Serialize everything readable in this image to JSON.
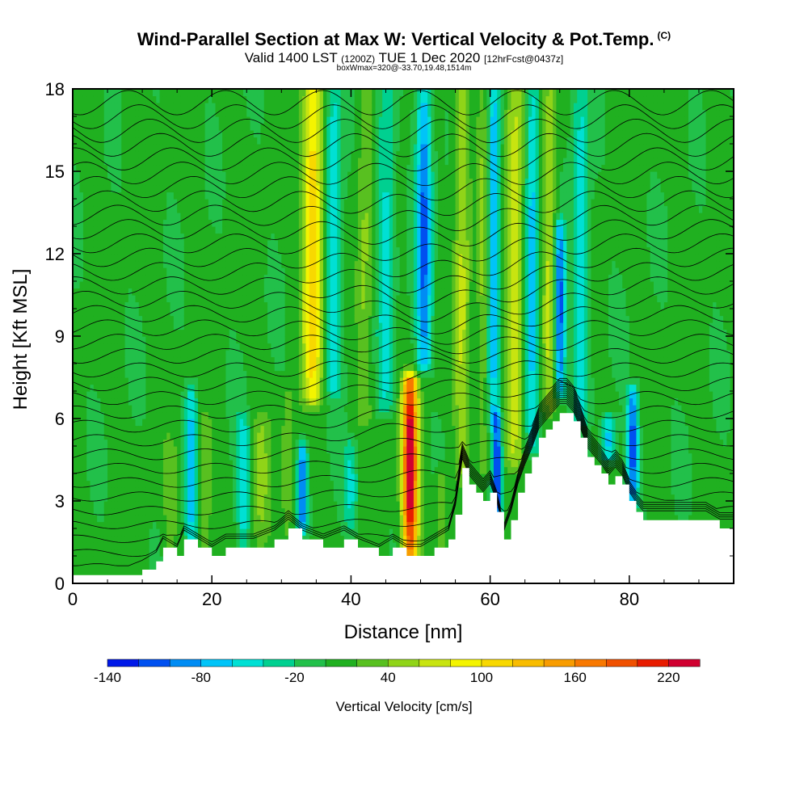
{
  "header": {
    "title": "Wind-Parallel Section at Max W: Vertical Velocity & Pot.Temp.",
    "copyright": "(C)",
    "valid_prefix": "Valid 1400 LST",
    "valid_z": "(1200Z)",
    "valid_date": "TUE 1 Dec 2020",
    "forecast": "[12hrFcst@0437z]",
    "box_info": "boxWmax=320@-33.70,19.48,1514m"
  },
  "chart_data": {
    "type": "heatmap",
    "title": "Wind-Parallel Section at Max W: Vertical Velocity & Pot.Temp.",
    "xlabel": "Distance [nm]",
    "ylabel": "Height [Kft MSL]",
    "xlim": [
      0,
      95
    ],
    "ylim": [
      0,
      18
    ],
    "x_ticks": [
      "0",
      "20",
      "40",
      "60",
      "80"
    ],
    "x_tick_values": [
      0,
      20,
      40,
      60,
      80
    ],
    "y_ticks": [
      "0",
      "3",
      "6",
      "9",
      "12",
      "15",
      "18"
    ],
    "y_tick_values": [
      0,
      3,
      6,
      9,
      12,
      15,
      18
    ],
    "colorbar": {
      "title": "Vertical Velocity [cm/s]",
      "tick_labels": [
        "-140",
        "-80",
        "-20",
        "40",
        "100",
        "160",
        "220"
      ],
      "tick_values": [
        -140,
        -80,
        -20,
        40,
        100,
        160,
        220
      ],
      "bins": [
        -140,
        -120,
        -100,
        -80,
        -60,
        -40,
        -20,
        0,
        20,
        40,
        60,
        80,
        100,
        120,
        140,
        160,
        180,
        200,
        220,
        240
      ],
      "colors": [
        "#0018e8",
        "#0050f0",
        "#008cf4",
        "#00c4f8",
        "#00e0d4",
        "#00d090",
        "#22c04a",
        "#20b020",
        "#58c020",
        "#90d418",
        "#c8e410",
        "#f4f400",
        "#f8d800",
        "#f8bc00",
        "#f89c00",
        "#f87800",
        "#f05000",
        "#e81c00",
        "#d00030"
      ]
    },
    "terrain": [
      {
        "x": 0,
        "h": 0.3
      },
      {
        "x": 4,
        "h": 0.3
      },
      {
        "x": 8,
        "h": 0.3
      },
      {
        "x": 10,
        "h": 0.5
      },
      {
        "x": 12,
        "h": 0.8
      },
      {
        "x": 13,
        "h": 1.3
      },
      {
        "x": 15,
        "h": 1.0
      },
      {
        "x": 16,
        "h": 1.6
      },
      {
        "x": 18,
        "h": 1.3
      },
      {
        "x": 20,
        "h": 1.0
      },
      {
        "x": 22,
        "h": 1.3
      },
      {
        "x": 26,
        "h": 1.3
      },
      {
        "x": 29,
        "h": 1.6
      },
      {
        "x": 31,
        "h": 2.0
      },
      {
        "x": 33,
        "h": 1.6
      },
      {
        "x": 36,
        "h": 1.3
      },
      {
        "x": 39,
        "h": 1.6
      },
      {
        "x": 41,
        "h": 1.3
      },
      {
        "x": 44,
        "h": 1.0
      },
      {
        "x": 46,
        "h": 1.3
      },
      {
        "x": 48,
        "h": 1.0
      },
      {
        "x": 50,
        "h": 1.0
      },
      {
        "x": 52,
        "h": 1.3
      },
      {
        "x": 54,
        "h": 1.6
      },
      {
        "x": 55,
        "h": 2.5
      },
      {
        "x": 56,
        "h": 4.2
      },
      {
        "x": 57,
        "h": 3.6
      },
      {
        "x": 58,
        "h": 3.3
      },
      {
        "x": 59,
        "h": 3.0
      },
      {
        "x": 60,
        "h": 3.3
      },
      {
        "x": 61,
        "h": 2.6
      },
      {
        "x": 62,
        "h": 1.6
      },
      {
        "x": 63,
        "h": 2.3
      },
      {
        "x": 64,
        "h": 3.3
      },
      {
        "x": 65,
        "h": 4.0
      },
      {
        "x": 66,
        "h": 4.6
      },
      {
        "x": 67,
        "h": 5.3
      },
      {
        "x": 68,
        "h": 5.6
      },
      {
        "x": 69,
        "h": 5.9
      },
      {
        "x": 70,
        "h": 6.2
      },
      {
        "x": 71,
        "h": 6.2
      },
      {
        "x": 72,
        "h": 5.9
      },
      {
        "x": 73,
        "h": 5.3
      },
      {
        "x": 74,
        "h": 4.6
      },
      {
        "x": 75,
        "h": 4.3
      },
      {
        "x": 76,
        "h": 4.0
      },
      {
        "x": 77,
        "h": 3.6
      },
      {
        "x": 78,
        "h": 3.9
      },
      {
        "x": 79,
        "h": 3.6
      },
      {
        "x": 80,
        "h": 3.0
      },
      {
        "x": 81,
        "h": 2.6
      },
      {
        "x": 82,
        "h": 2.3
      },
      {
        "x": 85,
        "h": 2.3
      },
      {
        "x": 88,
        "h": 2.3
      },
      {
        "x": 91,
        "h": 2.3
      },
      {
        "x": 93,
        "h": 2.0
      },
      {
        "x": 95,
        "h": 2.0
      }
    ],
    "updrafts": [
      {
        "x": 34.5,
        "h0": 6.8,
        "h1": 18,
        "w": 120,
        "sx": 1.4
      },
      {
        "x": 48.5,
        "h0": 1.0,
        "h1": 7.4,
        "w": 240,
        "sx": 1.1
      },
      {
        "x": 56,
        "h0": 4,
        "h1": 18,
        "w": 60,
        "sx": 1.1
      },
      {
        "x": 63.5,
        "h0": 4.5,
        "h1": 18,
        "w": 70,
        "sx": 1.3
      },
      {
        "x": 68.5,
        "h0": 6.5,
        "h1": 18,
        "w": 60,
        "sx": 1.0
      },
      {
        "x": 42,
        "h0": 6,
        "h1": 18,
        "w": 40,
        "sx": 1.1
      },
      {
        "x": 27,
        "h0": 1.5,
        "h1": 6,
        "w": 40,
        "sx": 1.2
      },
      {
        "x": 31,
        "h0": 1.8,
        "h1": 7,
        "w": 30,
        "sx": 1.0
      },
      {
        "x": 19,
        "h0": 1.3,
        "h1": 6,
        "w": 40,
        "sx": 0.9
      },
      {
        "x": 14,
        "h0": 1.0,
        "h1": 5,
        "w": 30,
        "sx": 0.9
      },
      {
        "x": 53,
        "h0": 1.3,
        "h1": 4,
        "w": 40,
        "sx": 0.9
      },
      {
        "x": 59,
        "h0": 4.2,
        "h1": 18,
        "w": 40,
        "sx": 0.8
      }
    ],
    "downdrafts": [
      {
        "x": 37.5,
        "h0": 7,
        "h1": 18,
        "w": -70,
        "sx": 1.2
      },
      {
        "x": 50.5,
        "h0": 8,
        "h1": 18,
        "w": -110,
        "sx": 1.1
      },
      {
        "x": 45,
        "h0": 6.5,
        "h1": 18,
        "w": -60,
        "sx": 1.2
      },
      {
        "x": 61,
        "h0": 2,
        "h1": 6,
        "w": -140,
        "sx": 0.7
      },
      {
        "x": 60.5,
        "h0": 6,
        "h1": 18,
        "w": -90,
        "sx": 0.9
      },
      {
        "x": 66,
        "h0": 5,
        "h1": 18,
        "w": -80,
        "sx": 1.0
      },
      {
        "x": 70,
        "h0": 7,
        "h1": 13,
        "w": -120,
        "sx": 0.8
      },
      {
        "x": 80.5,
        "h0": 3,
        "h1": 7,
        "w": -120,
        "sx": 0.8
      },
      {
        "x": 33,
        "h0": 2,
        "h1": 5,
        "w": -110,
        "sx": 0.7
      },
      {
        "x": 24.5,
        "h0": 1.5,
        "h1": 6,
        "w": -60,
        "sx": 1.0
      },
      {
        "x": 17,
        "h0": 1.5,
        "h1": 7,
        "w": -80,
        "sx": 0.8
      },
      {
        "x": 73,
        "h0": 6,
        "h1": 18,
        "w": -60,
        "sx": 1.2
      },
      {
        "x": 77,
        "h0": 4.5,
        "h1": 6,
        "w": -80,
        "sx": 1.0
      },
      {
        "x": 40,
        "h0": 2,
        "h1": 5,
        "w": -50,
        "sx": 1.0
      }
    ],
    "isentropes": {
      "count": 34,
      "base_height": 0.6,
      "top_height": 17.5
    }
  }
}
